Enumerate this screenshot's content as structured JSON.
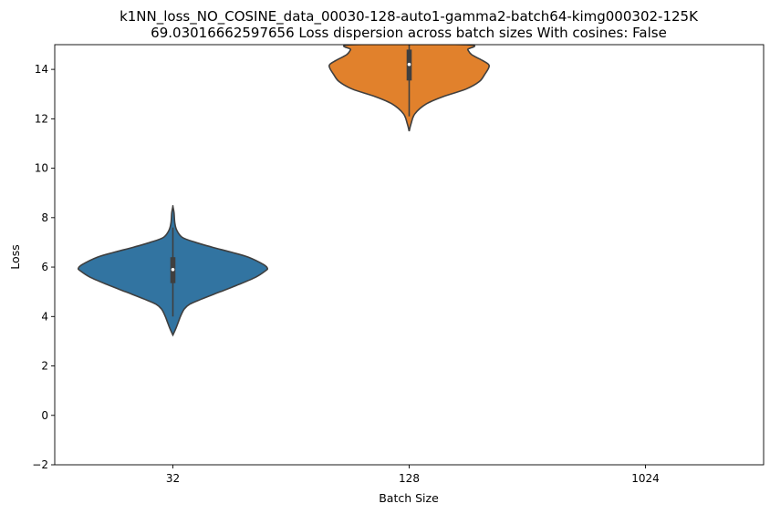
{
  "chart_data": {
    "type": "violin",
    "title_line1": "k1NN_loss_NO_COSINE_data_00030-128-auto1-gamma2-batch64-kimg000302-125K",
    "title_line2": "69.03016662597656 Loss dispersion across batch sizes With cosines: False",
    "xlabel": "Batch Size",
    "ylabel": "Loss",
    "categories": [
      "32",
      "128",
      "1024"
    ],
    "ylim": [
      -2,
      15
    ],
    "yticks": [
      -2,
      0,
      2,
      4,
      6,
      8,
      10,
      12,
      14
    ],
    "grid": false,
    "series": [
      {
        "category": "32",
        "color": "#3274a1",
        "min": 3.25,
        "q1": 5.35,
        "median": 5.9,
        "q3": 6.4,
        "max": 8.45,
        "whisker_low": 4.0,
        "whisker_high": 7.6,
        "density": [
          [
            3.25,
            0.0
          ],
          [
            3.5,
            0.03
          ],
          [
            3.8,
            0.06
          ],
          [
            4.0,
            0.08
          ],
          [
            4.3,
            0.12
          ],
          [
            4.5,
            0.18
          ],
          [
            4.7,
            0.3
          ],
          [
            5.0,
            0.5
          ],
          [
            5.3,
            0.7
          ],
          [
            5.6,
            0.88
          ],
          [
            5.85,
            0.98
          ],
          [
            5.95,
            1.0
          ],
          [
            6.1,
            0.96
          ],
          [
            6.4,
            0.8
          ],
          [
            6.6,
            0.62
          ],
          [
            6.8,
            0.42
          ],
          [
            7.0,
            0.24
          ],
          [
            7.2,
            0.1
          ],
          [
            7.5,
            0.04
          ],
          [
            7.8,
            0.02
          ],
          [
            8.2,
            0.012
          ],
          [
            8.45,
            0.0
          ]
        ]
      },
      {
        "category": "128",
        "color": "#e1812c",
        "min": 11.5,
        "q1": 13.55,
        "median": 14.2,
        "q3": 14.8,
        "max": 15.0,
        "whisker_low": 12.1,
        "whisker_high": 15.0,
        "density": [
          [
            11.5,
            0.0
          ],
          [
            11.8,
            0.02
          ],
          [
            12.2,
            0.06
          ],
          [
            12.6,
            0.18
          ],
          [
            12.9,
            0.36
          ],
          [
            13.2,
            0.6
          ],
          [
            13.5,
            0.74
          ],
          [
            13.8,
            0.8
          ],
          [
            14.05,
            0.84
          ],
          [
            14.2,
            0.84
          ],
          [
            14.35,
            0.78
          ],
          [
            14.6,
            0.66
          ],
          [
            14.8,
            0.62
          ],
          [
            15.0,
            0.6
          ]
        ]
      },
      {
        "category": "1024",
        "color": "#3a923a",
        "density": []
      }
    ]
  }
}
